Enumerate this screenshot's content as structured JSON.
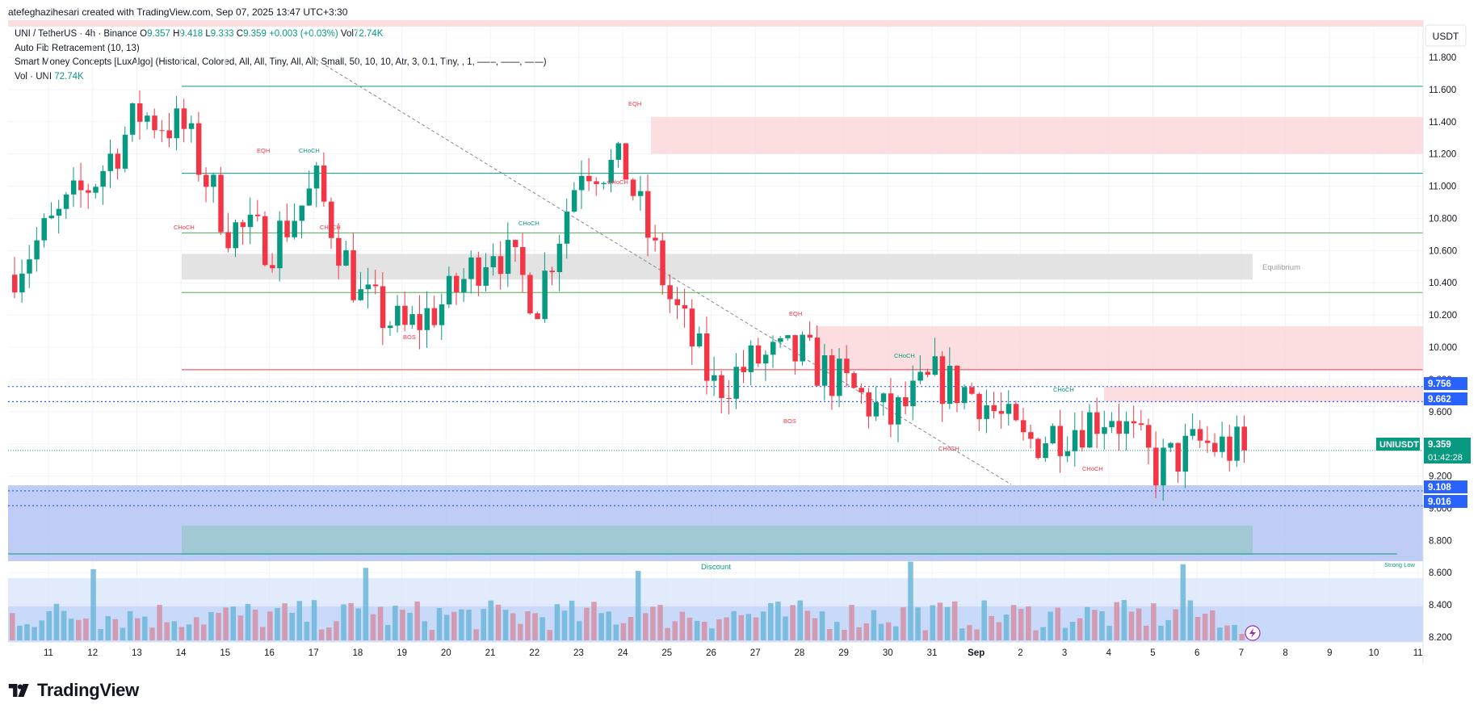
{
  "header": {
    "text": "atefeghazihesari created with TradingView.com, Sep 07, 2025 13:47 UTC+3:30"
  },
  "legend": {
    "symbol": "UNI / TetherUS · 4h · Binance",
    "ohlc": {
      "o_label": "O",
      "o": "9.357",
      "h_label": "H",
      "h": "9.418",
      "l_label": "L",
      "l": "9.333",
      "c_label": "C",
      "c": "9.359",
      "chg": "+0.003 (+0.03%)",
      "vol_label": "Vol",
      "vol": "72.74K"
    },
    "indicator1": "Auto Fib Retracement (10, 13)",
    "indicator2": "Smart Money Concepts [LuxAlgo] (Historical, Colored, All, All, Tiny, All, All, Small, 50, 10, 10, Atr, 3, 0.1, Tiny, , 1, ——, ——, ——)",
    "vol_indicator": "Vol · UNI",
    "vol_value": "72.74K"
  },
  "axis": {
    "currency": "USDT",
    "ticks": [
      "11.800",
      "11.600",
      "11.400",
      "11.200",
      "11.000",
      "10.800",
      "10.600",
      "10.400",
      "10.200",
      "10.000",
      "9.800",
      "9.600",
      "9.400",
      "9.200",
      "9.000",
      "8.800",
      "8.600",
      "8.400",
      "8.200"
    ],
    "date_ticks": [
      "11",
      "12",
      "13",
      "14",
      "15",
      "16",
      "17",
      "18",
      "19",
      "20",
      "21",
      "22",
      "23",
      "24",
      "25",
      "26",
      "27",
      "28",
      "29",
      "30",
      "31",
      "Sep",
      "2",
      "3",
      "4",
      "5",
      "6",
      "7",
      "8",
      "9",
      "10",
      "11"
    ]
  },
  "price_tags": {
    "last_symbol": "UNIUSDT",
    "last_price": "9.359",
    "countdown": "01:42:28",
    "level_9756": "9.756",
    "level_9662": "9.662",
    "level_9108": "9.108",
    "level_9016": "9.016"
  },
  "annotations": {
    "equilibrium": "Equilibrium",
    "discount": "Discount",
    "strong_low": "Strong Low",
    "eqh": "EQH",
    "choch": "CHoCH",
    "bos": "BOS"
  },
  "colors": {
    "up": "#089981",
    "down": "#f23645",
    "supply_zone": "#fbd6d9",
    "discount_zone": "#b3c3f5",
    "equilibrium_zone": "#e0e0e0",
    "volume_up": "#6cb6d8",
    "volume_down": "#d38fa6"
  },
  "footer": {
    "brand": "TradingView"
  },
  "chart_data": {
    "type": "candlestick",
    "symbol": "UNI / TetherUS",
    "timeframe": "4h",
    "x_axis": [
      "Aug 11",
      "Aug 12",
      "Aug 13",
      "Aug 14",
      "Aug 15",
      "Aug 16",
      "Aug 17",
      "Aug 18",
      "Aug 19",
      "Aug 20",
      "Aug 21",
      "Aug 22",
      "Aug 23",
      "Aug 24",
      "Aug 25",
      "Aug 26",
      "Aug 27",
      "Aug 28",
      "Aug 29",
      "Aug 30",
      "Aug 31",
      "Sep 1",
      "Sep 2",
      "Sep 3",
      "Sep 4",
      "Sep 5",
      "Sep 6",
      "Sep 7"
    ],
    "daily_close_approx": [
      10.75,
      11.05,
      11.45,
      11.35,
      10.75,
      10.65,
      11.0,
      10.3,
      10.1,
      10.3,
      10.65,
      10.3,
      11.15,
      11.1,
      10.3,
      9.75,
      9.92,
      9.95,
      9.75,
      9.55,
      9.8,
      9.7,
      9.4,
      9.5,
      9.6,
      9.25,
      9.4,
      9.36
    ],
    "ylim": [
      8.1,
      11.95
    ],
    "y_ticks": [
      8.2,
      8.4,
      8.6,
      8.8,
      9.0,
      9.2,
      9.4,
      9.6,
      9.8,
      10.0,
      10.2,
      10.4,
      10.6,
      10.8,
      11.0,
      11.2,
      11.4,
      11.6,
      11.8
    ],
    "last_price": 9.359,
    "horizontal_levels": [
      11.62,
      11.08,
      10.71,
      10.34,
      9.86,
      9.756,
      9.662,
      9.108,
      9.016
    ],
    "zones": {
      "supply_upper": [
        11.2,
        11.43
      ],
      "supply_mid": [
        9.86,
        10.13
      ],
      "supply_lower": [
        9.662,
        9.756
      ],
      "equilibrium": [
        10.42,
        10.58
      ],
      "discount": [
        8.7,
        9.108
      ]
    }
  }
}
